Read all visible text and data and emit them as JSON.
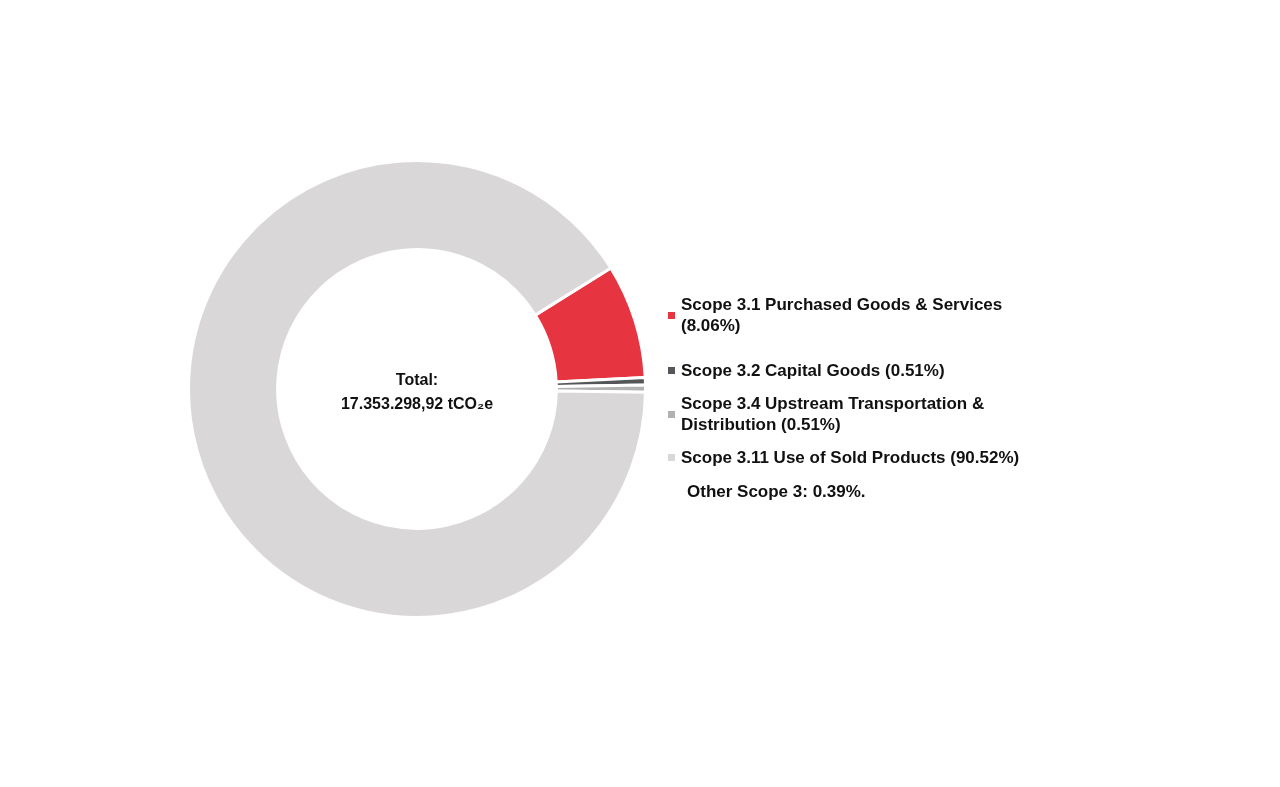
{
  "chart_data": {
    "type": "donut",
    "categories": [
      "Scope 3.1 Purchased Goods & Services (8.06%)",
      "Scope 3.2 Capital Goods (0.51%)",
      "Scope 3.4 Upstream Transportation & Distribution (0.51%)",
      "Scope 3.11 Use of Sold Products (90.52%)"
    ],
    "values": [
      8.06,
      0.51,
      0.51,
      90.52
    ],
    "colors": [
      "#e63440",
      "#54565a",
      "#b1b1b1",
      "#d9d7d7"
    ],
    "legend": "right",
    "annotations": [
      "Total:",
      "17.353.298,92 tCO₂e",
      "Other Scope 3: 0.39%."
    ]
  }
}
